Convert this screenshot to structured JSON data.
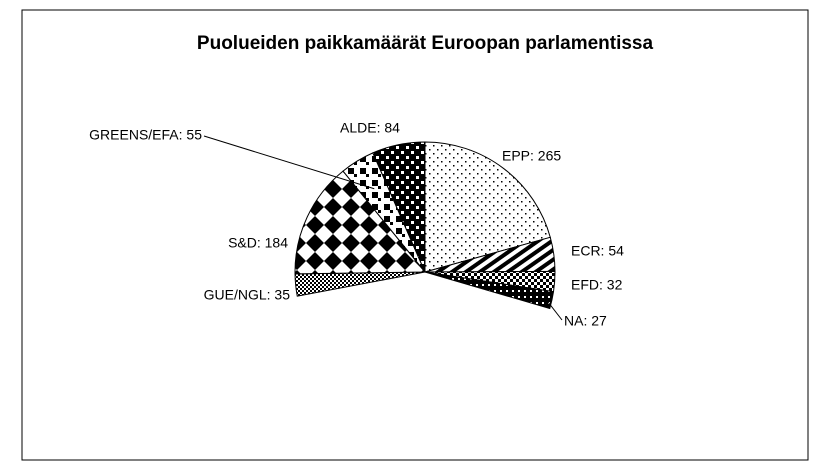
{
  "chart_data": {
    "type": "pie",
    "title": "Puolueiden paikkamäärät Euroopan parlamentissa",
    "categories": [
      "EPP",
      "ECR",
      "EFD",
      "NA",
      "GUE/NGL",
      "S&D",
      "GREENS/EFA",
      "ALDE"
    ],
    "values": [
      265,
      54,
      32,
      27,
      35,
      184,
      55,
      84
    ],
    "value_labels": [
      "EPP: 265",
      "ECR: 54",
      "EFD: 32",
      "NA: 27",
      "GUE/NGL: 35",
      "S&D: 184",
      "GREENS/EFA: 55",
      "ALDE: 84"
    ]
  }
}
